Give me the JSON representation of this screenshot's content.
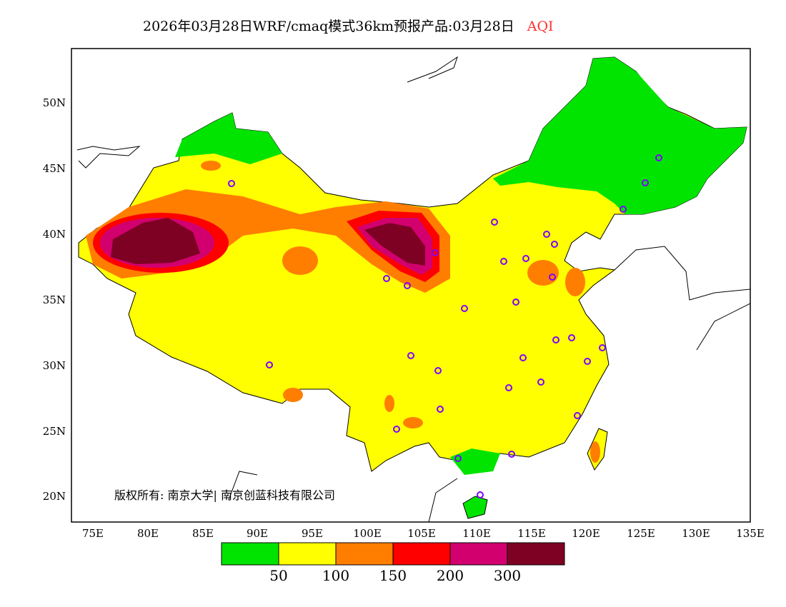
{
  "title": {
    "text": "2026年03月28日WRF/cmaq模式36km预报产品:03月28日",
    "variable": "AQI"
  },
  "axes": {
    "lon_labels": [
      "75E",
      "80E",
      "85E",
      "90E",
      "95E",
      "100E",
      "105E",
      "110E",
      "115E",
      "120E",
      "125E",
      "130E",
      "135E"
    ],
    "lat_labels": [
      "50N",
      "45N",
      "40N",
      "35N",
      "30N",
      "25N",
      "20N"
    ]
  },
  "legend": {
    "colors": [
      "#00e400",
      "#ffff00",
      "#ff7e00",
      "#ff0000",
      "#d2006f",
      "#7e0023"
    ],
    "labels": [
      "50",
      "100",
      "150",
      "200",
      "300"
    ]
  },
  "copyright": "版权所有: 南京大学| 南京创蓝科技有限公司"
}
